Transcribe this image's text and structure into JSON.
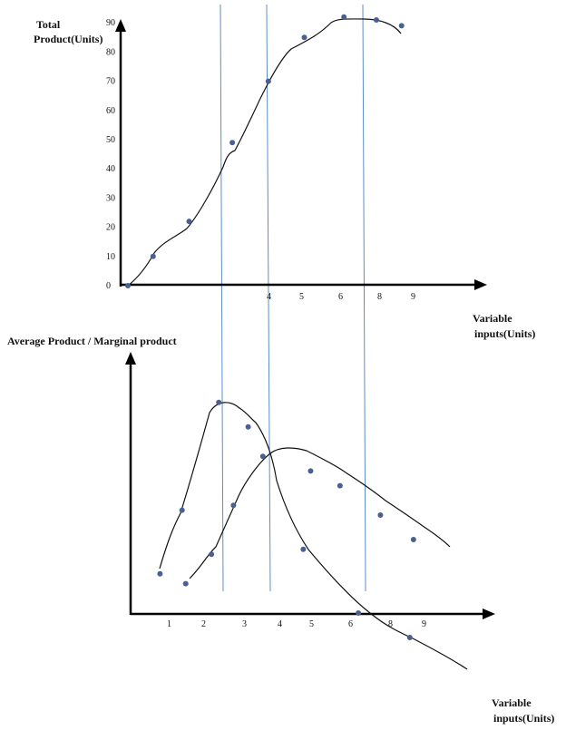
{
  "chart_data": [
    {
      "type": "line",
      "title": "",
      "ylabel_lines": [
        "Total",
        "Product(Units)"
      ],
      "xlabel_lines": [
        "Variable",
        "inputs(Units)"
      ],
      "ytick_labels": [
        "0",
        "10",
        "20",
        "30",
        "40",
        "50",
        "60",
        "70",
        "80",
        "90"
      ],
      "xtick_labels": [
        "4",
        "5",
        "6",
        "8",
        "9"
      ],
      "series": [
        {
          "points": [
            [
              0,
              0
            ],
            [
              0.7,
              10
            ],
            [
              1.7,
              22
            ],
            [
              2.9,
              49
            ],
            [
              3.9,
              70
            ],
            [
              4.9,
              85
            ],
            [
              6.0,
              92
            ],
            [
              6.9,
              91
            ],
            [
              7.6,
              89
            ]
          ]
        }
      ],
      "ylim": [
        0,
        95
      ],
      "xlim": [
        0,
        9
      ]
    },
    {
      "type": "line",
      "title": "",
      "ylabel": "Average Product / Marginal product",
      "xlabel_lines": [
        "Variable",
        "inputs(Units)"
      ],
      "xtick_labels": [
        "1",
        "2",
        "3",
        "4",
        "5",
        "6",
        "8",
        "9"
      ],
      "series": [
        {
          "points": [
            [
              0.8,
              8
            ],
            [
              1.4,
              21
            ],
            [
              2.4,
              43
            ],
            [
              3.2,
              38
            ],
            [
              4.7,
              13
            ],
            [
              6.2,
              0
            ],
            [
              7.6,
              -5
            ]
          ]
        },
        {
          "points": [
            [
              1.5,
              6
            ],
            [
              2.2,
              12
            ],
            [
              2.8,
              22
            ],
            [
              3.6,
              32
            ],
            [
              4.9,
              29
            ],
            [
              5.7,
              26
            ],
            [
              6.8,
              20
            ],
            [
              7.7,
              15
            ]
          ]
        }
      ],
      "xlim": [
        0,
        9
      ],
      "ylim": [
        -10,
        55
      ]
    }
  ]
}
